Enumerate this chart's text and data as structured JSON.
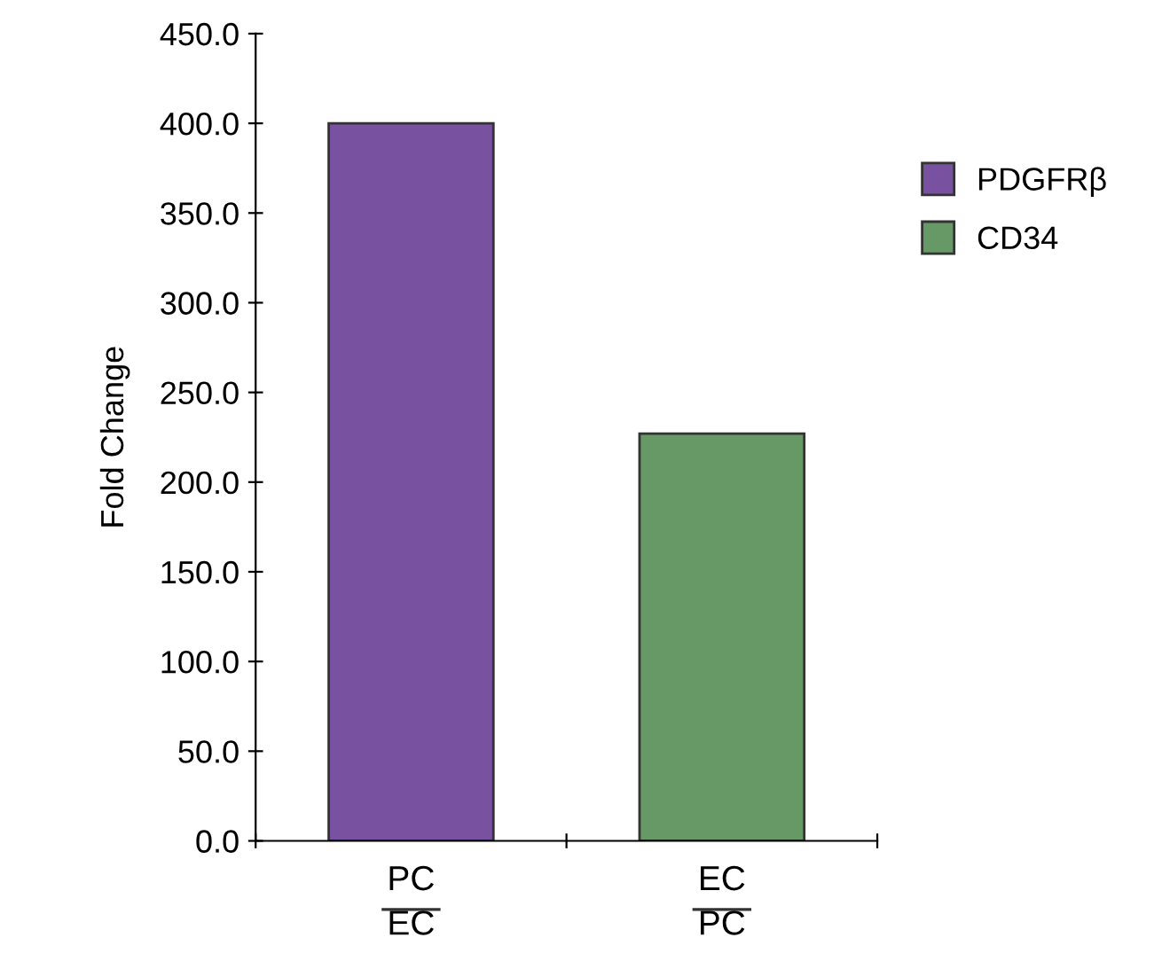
{
  "chart_data": {
    "type": "bar",
    "ylabel": "Fold Change",
    "categories": [
      "PC\nEC",
      "EC\nPC"
    ],
    "series": [
      {
        "name": "PDGFRβ",
        "color": "#7851a0",
        "values": [
          400,
          null
        ]
      },
      {
        "name": "CD34",
        "color": "#669966",
        "values": [
          null,
          227
        ]
      }
    ],
    "ylim": [
      0,
      450
    ],
    "yticks": [
      {
        "value": 0,
        "label": "0.0"
      },
      {
        "value": 50,
        "label": "50.0"
      },
      {
        "value": 100,
        "label": "100.0"
      },
      {
        "value": 150,
        "label": "150.0"
      },
      {
        "value": 200,
        "label": "200.0"
      },
      {
        "value": 250,
        "label": "250.0"
      },
      {
        "value": 300,
        "label": "300.0"
      },
      {
        "value": 350,
        "label": "350.0"
      },
      {
        "value": 400,
        "label": "400.0"
      },
      {
        "value": 450,
        "label": "450.0"
      }
    ],
    "grid": false,
    "legend": "right"
  }
}
